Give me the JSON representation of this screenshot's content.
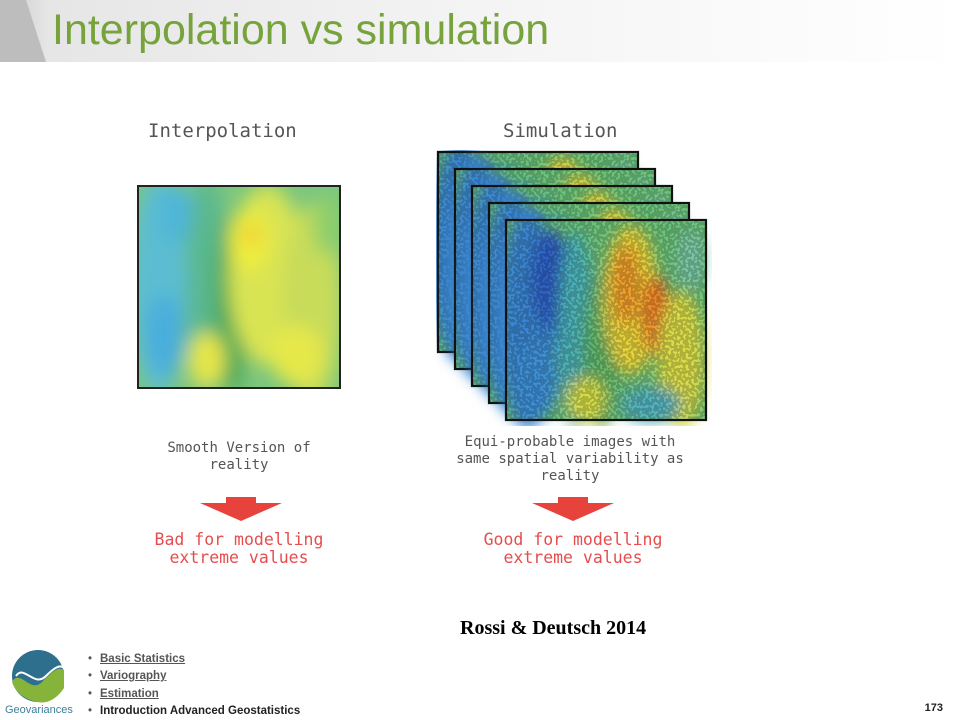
{
  "slide": {
    "title": "Interpolation vs simulation",
    "page_number": "173",
    "citation": "Rossi & Deutsch 2014"
  },
  "figure": {
    "left": {
      "title": "Interpolation",
      "caption_lines": [
        "Smooth Version of",
        "reality"
      ],
      "verdict_lines": [
        "Bad for modelling",
        "extreme values"
      ]
    },
    "right": {
      "title": "Simulation",
      "caption_lines": [
        "Equi-probable images with",
        "same spatial variability as",
        "reality"
      ],
      "verdict_lines": [
        "Good for modelling",
        "extreme values"
      ]
    },
    "colors": {
      "arrow": "#e8423d",
      "verdict_text": "#e74d4d"
    }
  },
  "footer": {
    "logo_text": "Geovariances",
    "nav": [
      {
        "label": "Basic Statistics",
        "link": true
      },
      {
        "label": "Variography",
        "link": true
      },
      {
        "label": "Estimation",
        "link": true
      },
      {
        "label": "Introduction Advanced Geostatistics",
        "link": false
      }
    ]
  },
  "theme": {
    "title_color": "#77a33c"
  }
}
